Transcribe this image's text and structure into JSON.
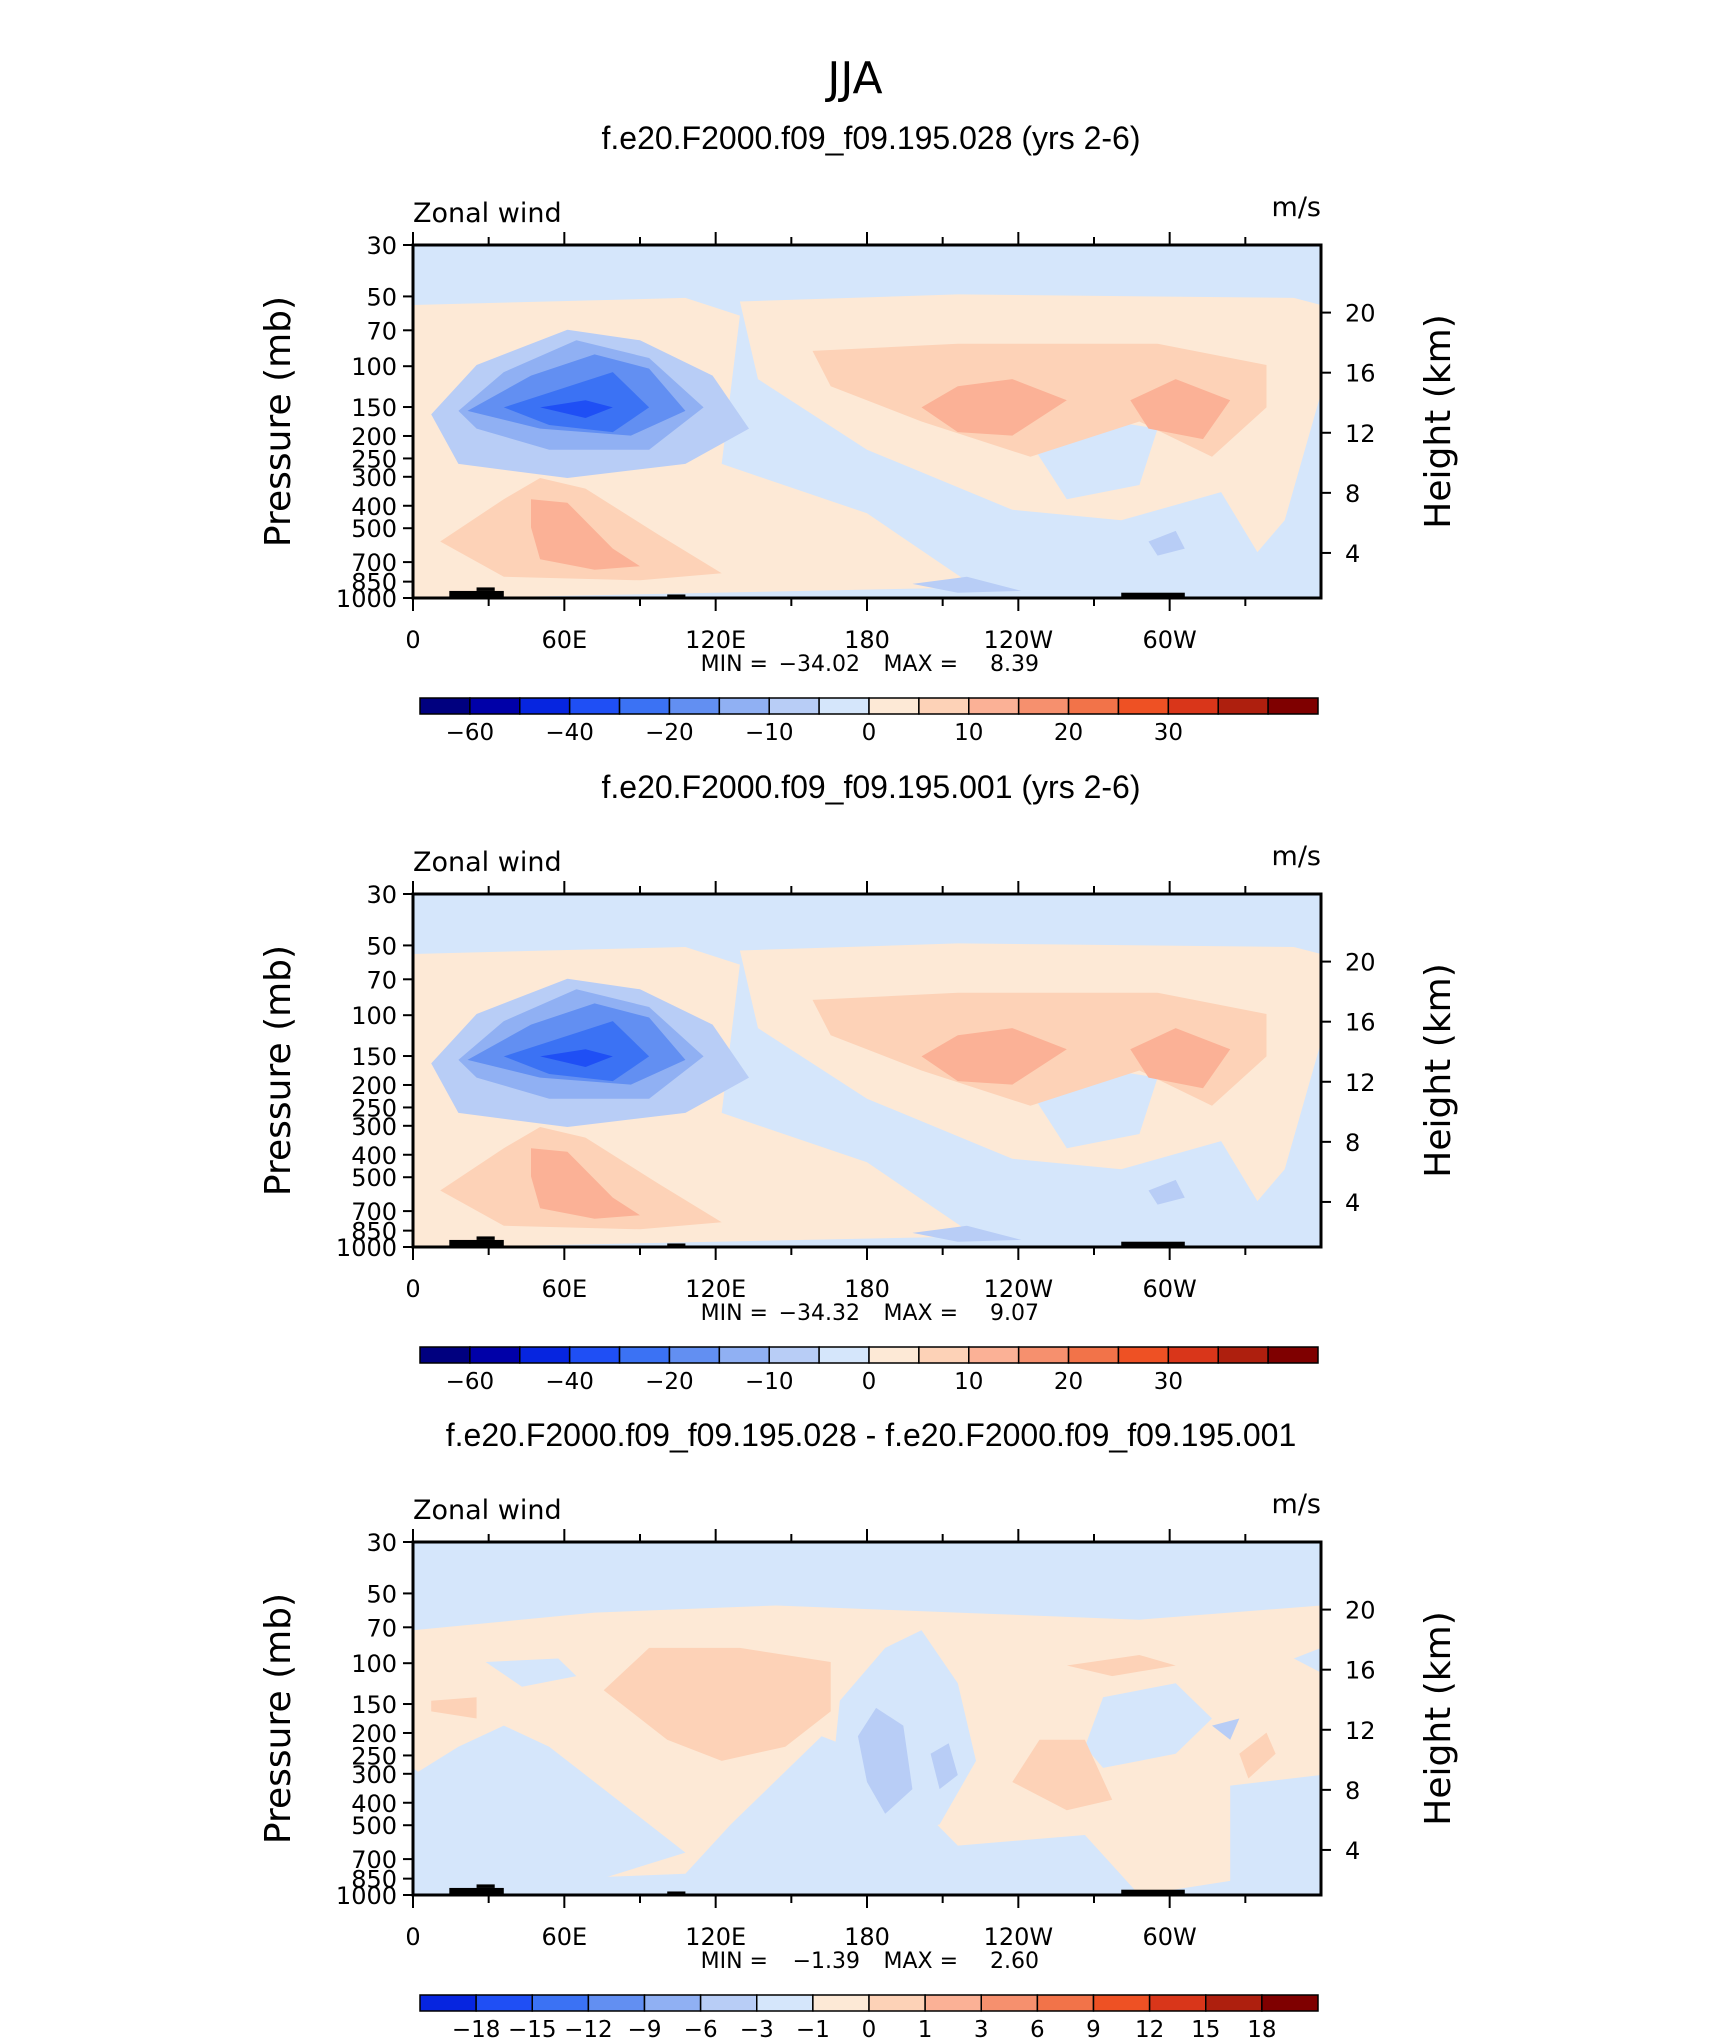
{
  "figure_title": "JJA",
  "colors": {
    "blue_scale": [
      "#00007f",
      "#0000a8",
      "#0625e0",
      "#1f4ff5",
      "#3b72f4",
      "#628ff2",
      "#90b0f3",
      "#b8cdf6",
      "#d5e6fb"
    ],
    "red_scale": [
      "#fde9d6",
      "#fdd2b7",
      "#fbb196",
      "#f6906e",
      "#f27349",
      "#ee5124",
      "#d9361a",
      "#ae1f0e",
      "#7f0000"
    ],
    "land": "#000000"
  },
  "panels": [
    {
      "title": "f.e20.F2000.f09_f09.195.028 (yrs 2-6)",
      "left_label": "Zonal wind",
      "right_label": "m/s",
      "min_label": "MIN =",
      "min_value": "−34.02",
      "max_label": "MAX =",
      "max_value": "8.39",
      "colorbar_labels": [
        "−60",
        "−40",
        "−20",
        "−10",
        "0",
        "10",
        "20",
        "30"
      ]
    },
    {
      "title": "f.e20.F2000.f09_f09.195.001 (yrs 2-6)",
      "left_label": "Zonal wind",
      "right_label": "m/s",
      "min_label": "MIN =",
      "min_value": "−34.32",
      "max_label": "MAX =",
      "max_value": "9.07",
      "colorbar_labels": [
        "−60",
        "−40",
        "−20",
        "−10",
        "0",
        "10",
        "20",
        "30"
      ]
    },
    {
      "title": "f.e20.F2000.f09_f09.195.028 - f.e20.F2000.f09_f09.195.001",
      "left_label": "Zonal wind",
      "right_label": "m/s",
      "min_label": "MIN =",
      "min_value": "−1.39",
      "max_label": "MAX =",
      "max_value": "2.60",
      "colorbar_labels": [
        "−18",
        "−15",
        "−12",
        "−9",
        "−6",
        "−3",
        "−1",
        "0",
        "1",
        "3",
        "6",
        "9",
        "12",
        "15",
        "18"
      ]
    }
  ],
  "chart_data": [
    {
      "type": "heatmap",
      "title": "f.e20.F2000.f09_f09.195.028 (yrs 2-6)",
      "variable": "Zonal wind",
      "units": "m/s",
      "xlabel": "",
      "ylabel": "Pressure (mb)",
      "ylabel_right": "Height (km)",
      "x_ticks": [
        "0",
        "60E",
        "120E",
        "180",
        "120W",
        "60W"
      ],
      "y_ticks": [
        30,
        50,
        70,
        100,
        150,
        200,
        250,
        300,
        400,
        500,
        700,
        850,
        1000
      ],
      "y_scale": "log",
      "y_reversed": true,
      "height_ticks": [
        20,
        16,
        12,
        8,
        4
      ],
      "min": -34.02,
      "max": 8.39,
      "contour_levels": [
        -60,
        -50,
        -40,
        -30,
        -20,
        -15,
        -10,
        -5,
        0,
        5,
        10,
        15,
        20,
        25,
        30,
        35
      ],
      "colorbar_ticks": [
        -60,
        -40,
        -20,
        -10,
        0,
        10,
        20,
        30
      ]
    },
    {
      "type": "heatmap",
      "title": "f.e20.F2000.f09_f09.195.001 (yrs 2-6)",
      "variable": "Zonal wind",
      "units": "m/s",
      "xlabel": "",
      "ylabel": "Pressure (mb)",
      "ylabel_right": "Height (km)",
      "x_ticks": [
        "0",
        "60E",
        "120E",
        "180",
        "120W",
        "60W"
      ],
      "y_ticks": [
        30,
        50,
        70,
        100,
        150,
        200,
        250,
        300,
        400,
        500,
        700,
        850,
        1000
      ],
      "y_scale": "log",
      "y_reversed": true,
      "height_ticks": [
        20,
        16,
        12,
        8,
        4
      ],
      "min": -34.32,
      "max": 9.07,
      "contour_levels": [
        -60,
        -50,
        -40,
        -30,
        -20,
        -15,
        -10,
        -5,
        0,
        5,
        10,
        15,
        20,
        25,
        30,
        35
      ],
      "colorbar_ticks": [
        -60,
        -40,
        -20,
        -10,
        0,
        10,
        20,
        30
      ]
    },
    {
      "type": "heatmap",
      "title": "f.e20.F2000.f09_f09.195.028 - f.e20.F2000.f09_f09.195.001",
      "variable": "Zonal wind",
      "units": "m/s",
      "xlabel": "",
      "ylabel": "Pressure (mb)",
      "ylabel_right": "Height (km)",
      "x_ticks": [
        "0",
        "60E",
        "120E",
        "180",
        "120W",
        "60W"
      ],
      "y_ticks": [
        30,
        50,
        70,
        100,
        150,
        200,
        250,
        300,
        400,
        500,
        700,
        850,
        1000
      ],
      "y_scale": "log",
      "y_reversed": true,
      "height_ticks": [
        20,
        16,
        12,
        8,
        4
      ],
      "min": -1.39,
      "max": 2.6,
      "contour_levels": [
        -18,
        -15,
        -12,
        -9,
        -6,
        -3,
        -1,
        0,
        1,
        3,
        6,
        9,
        12,
        15,
        18
      ],
      "colorbar_ticks": [
        -18,
        -15,
        -12,
        -9,
        -6,
        -3,
        -1,
        0,
        1,
        3,
        6,
        9,
        12,
        15,
        18
      ]
    }
  ]
}
